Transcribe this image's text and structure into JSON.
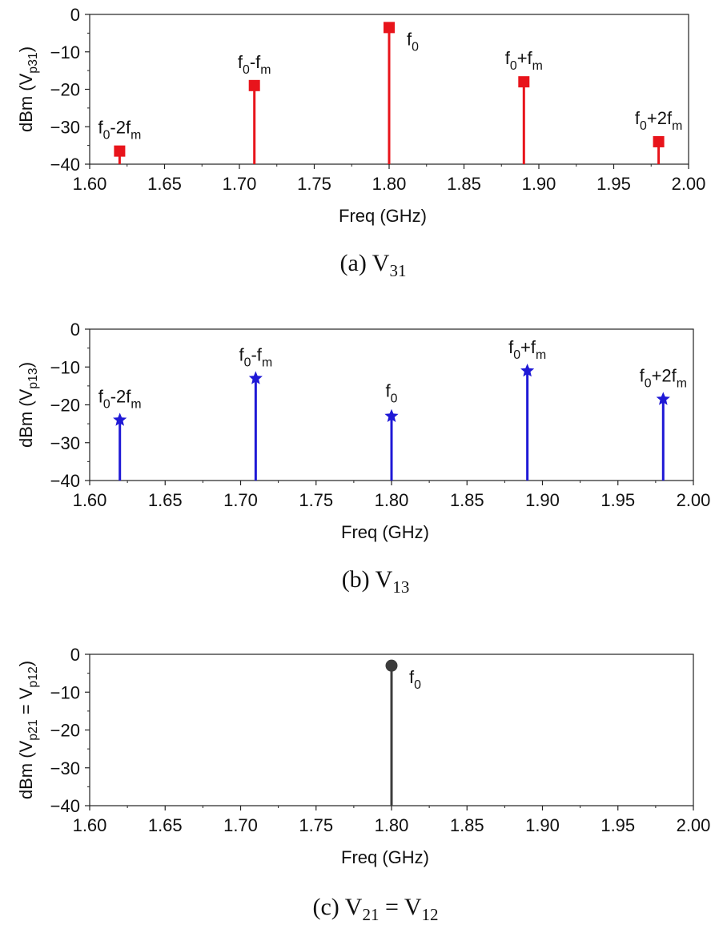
{
  "chart_data": [
    {
      "type": "stem",
      "caption": {
        "prefix": "(a)",
        "parts": [
          {
            "t": "V",
            "s": "31"
          }
        ]
      },
      "xlabel": "Freq (GHz)",
      "ylabel": {
        "parts": [
          {
            "t": "dBm (V"
          },
          {
            "t": "p31",
            "sub": true
          },
          {
            "t": ")"
          }
        ]
      },
      "xlim": [
        1.6,
        2.0
      ],
      "ylim": [
        -40,
        0
      ],
      "xticks": [
        "1.60",
        "1.65",
        "1.70",
        "1.75",
        "1.80",
        "1.85",
        "1.90",
        "1.95",
        "2.00"
      ],
      "yticks": [
        "0",
        "-10",
        "-20",
        "-30",
        "-40"
      ],
      "color": "#e8141b",
      "marker": "square",
      "points": [
        {
          "x": 1.62,
          "y": -36.5,
          "label": [
            {
              "t": "f"
            },
            {
              "t": "0",
              "sub": true
            },
            {
              "t": "-2f"
            },
            {
              "t": "m",
              "sub": true
            }
          ]
        },
        {
          "x": 1.71,
          "y": -19.0,
          "label": [
            {
              "t": "f"
            },
            {
              "t": "0",
              "sub": true
            },
            {
              "t": "-f"
            },
            {
              "t": "m",
              "sub": true
            }
          ]
        },
        {
          "x": 1.8,
          "y": -3.5,
          "label": [
            {
              "t": "f"
            },
            {
              "t": "0",
              "sub": true
            }
          ]
        },
        {
          "x": 1.89,
          "y": -18.0,
          "label": [
            {
              "t": "f"
            },
            {
              "t": "0",
              "sub": true
            },
            {
              "t": "+f"
            },
            {
              "t": "m",
              "sub": true
            }
          ]
        },
        {
          "x": 1.98,
          "y": -34.0,
          "label": [
            {
              "t": "f"
            },
            {
              "t": "0",
              "sub": true
            },
            {
              "t": "+2f"
            },
            {
              "t": "m",
              "sub": true
            }
          ]
        }
      ]
    },
    {
      "type": "stem",
      "caption": {
        "prefix": "(b)",
        "parts": [
          {
            "t": "V",
            "s": "13"
          }
        ]
      },
      "xlabel": "Freq (GHz)",
      "ylabel": {
        "parts": [
          {
            "t": "dBm (V"
          },
          {
            "t": "p13",
            "sub": true
          },
          {
            "t": ")"
          }
        ]
      },
      "xlim": [
        1.6,
        2.0
      ],
      "ylim": [
        -40,
        0
      ],
      "xticks": [
        "1.60",
        "1.65",
        "1.70",
        "1.75",
        "1.80",
        "1.85",
        "1.90",
        "1.95",
        "2.00"
      ],
      "yticks": [
        "0",
        "-10",
        "-20",
        "-30",
        "-40"
      ],
      "color": "#1f19d6",
      "marker": "star",
      "points": [
        {
          "x": 1.62,
          "y": -24.0,
          "label": [
            {
              "t": "f"
            },
            {
              "t": "0",
              "sub": true
            },
            {
              "t": "-2f"
            },
            {
              "t": "m",
              "sub": true
            }
          ]
        },
        {
          "x": 1.71,
          "y": -13.0,
          "label": [
            {
              "t": "f"
            },
            {
              "t": "0",
              "sub": true
            },
            {
              "t": "-f"
            },
            {
              "t": "m",
              "sub": true
            }
          ]
        },
        {
          "x": 1.8,
          "y": -23.0,
          "label": [
            {
              "t": "f"
            },
            {
              "t": "0",
              "sub": true
            }
          ]
        },
        {
          "x": 1.89,
          "y": -11.0,
          "label": [
            {
              "t": "f"
            },
            {
              "t": "0",
              "sub": true
            },
            {
              "t": "+f"
            },
            {
              "t": "m",
              "sub": true
            }
          ]
        },
        {
          "x": 1.98,
          "y": -18.5,
          "label": [
            {
              "t": "f"
            },
            {
              "t": "0",
              "sub": true
            },
            {
              "t": "+2f"
            },
            {
              "t": "m",
              "sub": true
            }
          ]
        }
      ]
    },
    {
      "type": "stem",
      "caption": {
        "prefix": "(c)",
        "parts": [
          {
            "t": "V",
            "s": "21"
          },
          {
            "t": " = "
          },
          {
            "t": "V",
            "s": "12"
          }
        ]
      },
      "xlabel": "Freq (GHz)",
      "ylabel": {
        "parts": [
          {
            "t": "dBm (V"
          },
          {
            "t": "p21",
            "sub": true
          },
          {
            "t": " = V"
          },
          {
            "t": "p12",
            "sub": true
          },
          {
            "t": ")"
          }
        ]
      },
      "xlim": [
        1.6,
        2.0
      ],
      "ylim": [
        -40,
        0
      ],
      "xticks": [
        "1.60",
        "1.65",
        "1.70",
        "1.75",
        "1.80",
        "1.85",
        "1.90",
        "1.95",
        "2.00"
      ],
      "yticks": [
        "0",
        "-10",
        "-20",
        "-30",
        "-40"
      ],
      "color": "#3c3c3c",
      "marker": "circle",
      "points": [
        {
          "x": 1.8,
          "y": -3.0,
          "label": [
            {
              "t": "f"
            },
            {
              "t": "0",
              "sub": true
            }
          ]
        }
      ]
    }
  ]
}
